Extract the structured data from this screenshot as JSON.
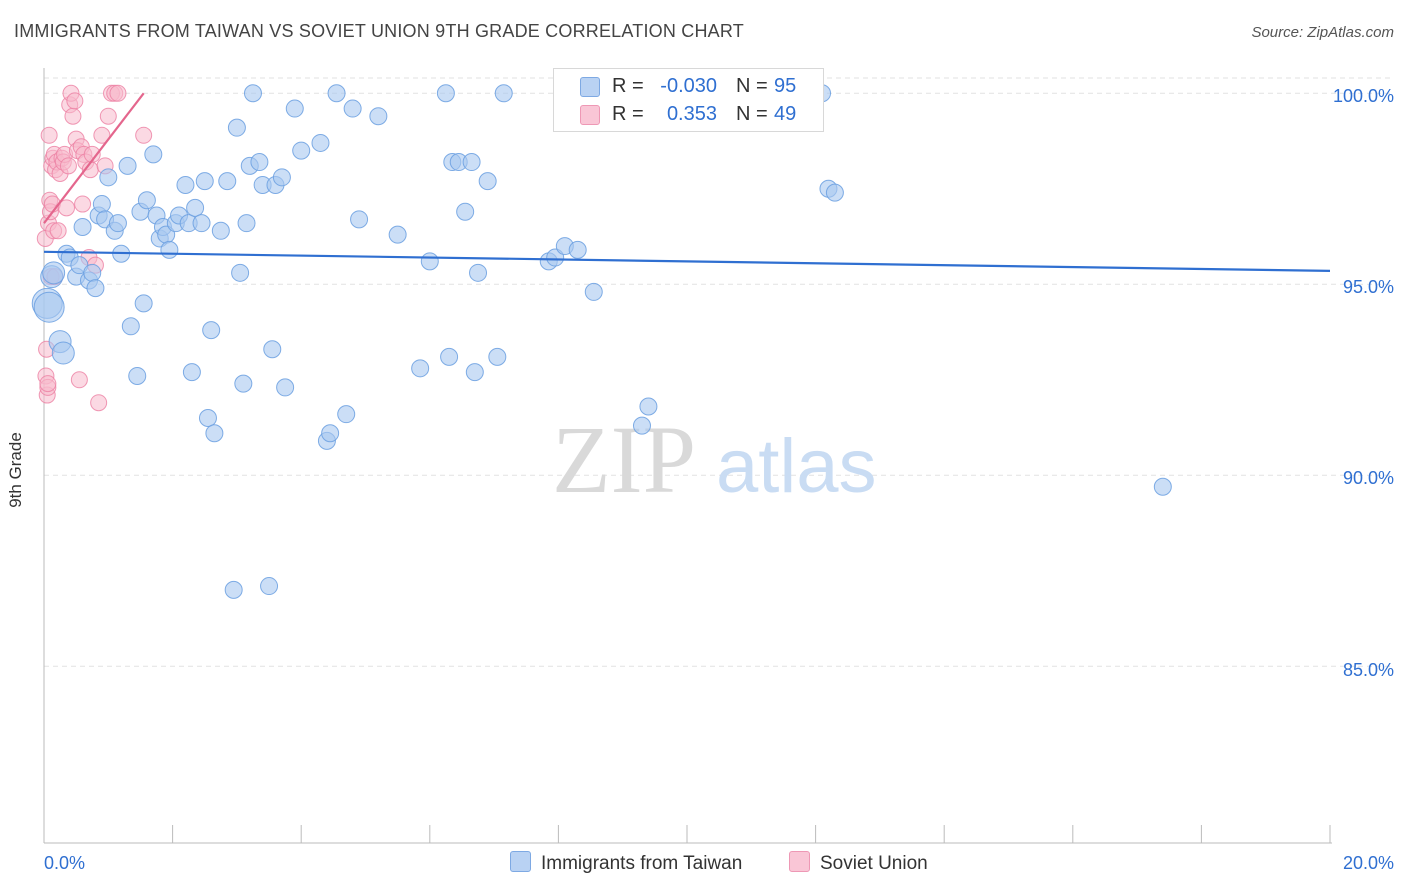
{
  "title": "IMMIGRANTS FROM TAIWAN VS SOVIET UNION 9TH GRADE CORRELATION CHART",
  "source": "Source: ZipAtlas.com",
  "watermark": {
    "zip": "ZIP",
    "atlas": "atlas"
  },
  "legend": {
    "series1": {
      "r_label": "R =",
      "r_value": "-0.030",
      "n_label": "N =",
      "n_value": "95"
    },
    "series2": {
      "r_label": "R =",
      "r_value": "0.353",
      "n_label": "N =",
      "n_value": "49"
    }
  },
  "chart_data": {
    "type": "scatter",
    "title": "IMMIGRANTS FROM TAIWAN VS SOVIET UNION 9TH GRADE CORRELATION CHART",
    "xlabel": "",
    "ylabel": "9th Grade",
    "xlim": [
      0,
      20
    ],
    "ylim": [
      80.5,
      100.8
    ],
    "x_tick_labels": [
      "0.0%",
      "20.0%"
    ],
    "y_ticks": [
      85,
      90,
      95,
      100
    ],
    "y_tick_labels": [
      "85.0%",
      "90.0%",
      "95.0%",
      "100.0%"
    ],
    "grid": "horizontal dashed",
    "legend_position": "bottom-center",
    "series": [
      {
        "name": "Immigrants from Taiwan",
        "color": "#6a9fe0",
        "fill": "#a9c8f0",
        "trend": {
          "x": [
            0,
            20
          ],
          "y": [
            95.85,
            95.35
          ]
        },
        "points": [
          [
            0.05,
            94.5
          ],
          [
            0.12,
            95.2
          ],
          [
            0.15,
            95.3
          ],
          [
            0.25,
            93.5
          ],
          [
            0.3,
            93.2
          ],
          [
            0.35,
            95.8
          ],
          [
            0.4,
            95.7
          ],
          [
            0.5,
            95.2
          ],
          [
            0.55,
            95.5
          ],
          [
            0.6,
            96.5
          ],
          [
            0.7,
            95.1
          ],
          [
            0.75,
            95.3
          ],
          [
            0.8,
            94.9
          ],
          [
            0.85,
            96.8
          ],
          [
            0.9,
            97.1
          ],
          [
            0.95,
            96.7
          ],
          [
            1.0,
            97.8
          ],
          [
            1.1,
            96.4
          ],
          [
            1.15,
            96.6
          ],
          [
            1.2,
            95.8
          ],
          [
            1.3,
            98.1
          ],
          [
            1.35,
            93.9
          ],
          [
            1.45,
            92.6
          ],
          [
            1.5,
            96.9
          ],
          [
            1.55,
            94.5
          ],
          [
            1.6,
            97.2
          ],
          [
            1.7,
            98.4
          ],
          [
            1.75,
            96.8
          ],
          [
            1.8,
            96.2
          ],
          [
            1.85,
            96.5
          ],
          [
            1.9,
            96.3
          ],
          [
            1.95,
            95.9
          ],
          [
            2.05,
            96.6
          ],
          [
            2.1,
            96.8
          ],
          [
            2.2,
            97.6
          ],
          [
            2.25,
            96.6
          ],
          [
            2.3,
            92.7
          ],
          [
            2.35,
            97.0
          ],
          [
            2.45,
            96.6
          ],
          [
            2.5,
            97.7
          ],
          [
            2.55,
            91.5
          ],
          [
            2.6,
            93.8
          ],
          [
            2.65,
            91.1
          ],
          [
            2.75,
            96.4
          ],
          [
            2.85,
            97.7
          ],
          [
            2.95,
            87.0
          ],
          [
            3.0,
            99.1
          ],
          [
            3.05,
            95.3
          ],
          [
            3.1,
            92.4
          ],
          [
            3.15,
            96.6
          ],
          [
            3.2,
            98.1
          ],
          [
            3.25,
            100.0
          ],
          [
            3.35,
            98.2
          ],
          [
            3.4,
            97.6
          ],
          [
            3.5,
            87.1
          ],
          [
            3.55,
            93.3
          ],
          [
            3.6,
            97.6
          ],
          [
            3.7,
            97.8
          ],
          [
            3.75,
            92.3
          ],
          [
            3.9,
            99.6
          ],
          [
            4.0,
            98.5
          ],
          [
            4.3,
            98.7
          ],
          [
            4.4,
            90.9
          ],
          [
            4.45,
            91.1
          ],
          [
            4.55,
            100.0
          ],
          [
            4.7,
            91.6
          ],
          [
            4.8,
            99.6
          ],
          [
            4.9,
            96.7
          ],
          [
            5.2,
            99.4
          ],
          [
            5.5,
            96.3
          ],
          [
            5.85,
            92.8
          ],
          [
            6.0,
            95.6
          ],
          [
            6.25,
            100.0
          ],
          [
            6.3,
            93.1
          ],
          [
            6.35,
            98.2
          ],
          [
            6.45,
            98.2
          ],
          [
            6.55,
            96.9
          ],
          [
            6.65,
            98.2
          ],
          [
            6.7,
            92.7
          ],
          [
            6.75,
            95.3
          ],
          [
            6.9,
            97.7
          ],
          [
            7.05,
            93.1
          ],
          [
            7.15,
            100.0
          ],
          [
            7.85,
            95.6
          ],
          [
            7.95,
            95.7
          ],
          [
            8.1,
            96.0
          ],
          [
            8.3,
            95.9
          ],
          [
            8.55,
            94.8
          ],
          [
            9.3,
            91.3
          ],
          [
            9.4,
            91.8
          ],
          [
            12.1,
            100.0
          ],
          [
            12.2,
            97.5
          ],
          [
            12.3,
            97.4
          ],
          [
            17.4,
            89.7
          ],
          [
            0.08,
            94.4
          ]
        ]
      },
      {
        "name": "Soviet Union",
        "color": "#ec7fa2",
        "fill": "#f7b9cc",
        "trend": {
          "x": [
            0,
            1.55
          ],
          "y": [
            96.6,
            100.0
          ]
        },
        "points": [
          [
            0.02,
            96.2
          ],
          [
            0.03,
            92.6
          ],
          [
            0.04,
            93.3
          ],
          [
            0.05,
            92.1
          ],
          [
            0.06,
            92.3
          ],
          [
            0.07,
            96.6
          ],
          [
            0.08,
            98.9
          ],
          [
            0.09,
            97.2
          ],
          [
            0.1,
            96.9
          ],
          [
            0.11,
            95.2
          ],
          [
            0.12,
            98.1
          ],
          [
            0.13,
            97.1
          ],
          [
            0.14,
            98.3
          ],
          [
            0.15,
            96.4
          ],
          [
            0.16,
            98.4
          ],
          [
            0.17,
            95.2
          ],
          [
            0.18,
            98.0
          ],
          [
            0.2,
            98.2
          ],
          [
            0.22,
            96.4
          ],
          [
            0.25,
            97.9
          ],
          [
            0.28,
            98.3
          ],
          [
            0.3,
            98.2
          ],
          [
            0.32,
            98.4
          ],
          [
            0.35,
            97.0
          ],
          [
            0.38,
            98.1
          ],
          [
            0.4,
            99.7
          ],
          [
            0.42,
            100.0
          ],
          [
            0.45,
            99.4
          ],
          [
            0.48,
            99.8
          ],
          [
            0.5,
            98.8
          ],
          [
            0.52,
            98.5
          ],
          [
            0.55,
            92.5
          ],
          [
            0.58,
            98.6
          ],
          [
            0.6,
            97.1
          ],
          [
            0.62,
            98.4
          ],
          [
            0.65,
            98.2
          ],
          [
            0.7,
            95.7
          ],
          [
            0.72,
            98.0
          ],
          [
            0.75,
            98.4
          ],
          [
            0.8,
            95.5
          ],
          [
            0.85,
            91.9
          ],
          [
            0.9,
            98.9
          ],
          [
            0.95,
            98.1
          ],
          [
            1.0,
            99.4
          ],
          [
            1.05,
            100.0
          ],
          [
            1.1,
            100.0
          ],
          [
            1.15,
            100.0
          ],
          [
            1.55,
            98.9
          ],
          [
            0.06,
            92.4
          ]
        ]
      }
    ]
  },
  "bottom_legend": {
    "series1": "Immigrants from Taiwan",
    "series2": "Soviet Union"
  }
}
